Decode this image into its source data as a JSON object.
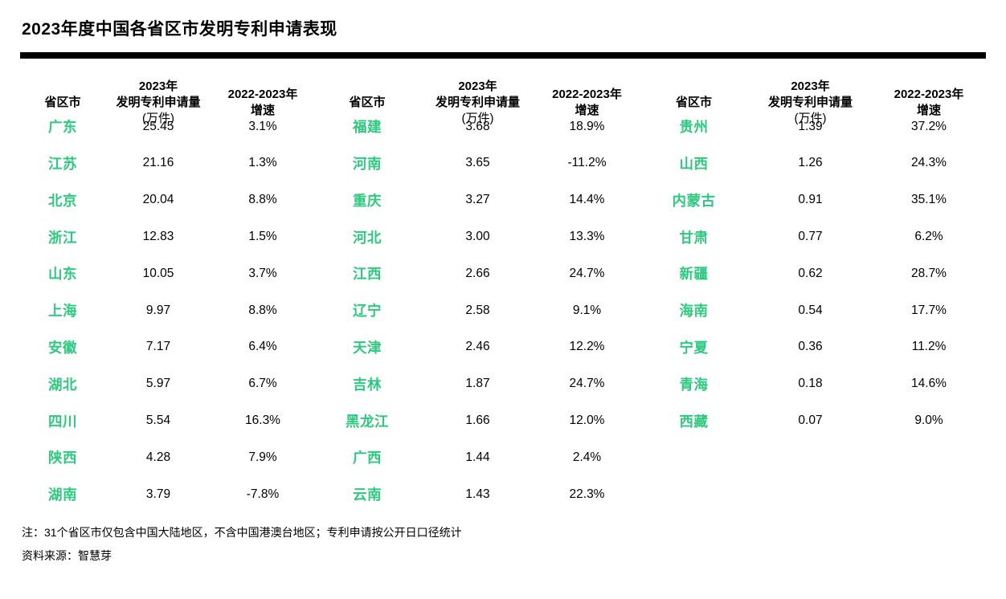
{
  "title": "2023年度中国各省区市发明专利申请表现",
  "colors": {
    "accent_green": "#2EC87F",
    "divider_black": "#000000"
  },
  "table": {
    "headers": {
      "province": "省区市",
      "amount_line1": "2023年",
      "amount_line2": "发明专利申请量",
      "amount_line3": "(万件)",
      "growth_line1": "2022-2023年",
      "growth_line2": "增速"
    },
    "groups": [
      {
        "rows": [
          [
            "广东",
            "25.45",
            "3.1%"
          ],
          [
            "江苏",
            "21.16",
            "1.3%"
          ],
          [
            "北京",
            "20.04",
            "8.8%"
          ],
          [
            "浙江",
            "12.83",
            "1.5%"
          ],
          [
            "山东",
            "10.05",
            "3.7%"
          ],
          [
            "上海",
            "9.97",
            "8.8%"
          ],
          [
            "安徽",
            "7.17",
            "6.4%"
          ],
          [
            "湖北",
            "5.97",
            "6.7%"
          ],
          [
            "四川",
            "5.54",
            "16.3%"
          ],
          [
            "陕西",
            "4.28",
            "7.9%"
          ],
          [
            "湖南",
            "3.79",
            "-7.8%"
          ]
        ]
      },
      {
        "rows": [
          [
            "福建",
            "3.68",
            "18.9%"
          ],
          [
            "河南",
            "3.65",
            "-11.2%"
          ],
          [
            "重庆",
            "3.27",
            "14.4%"
          ],
          [
            "河北",
            "3.00",
            "13.3%"
          ],
          [
            "江西",
            "2.66",
            "24.7%"
          ],
          [
            "辽宁",
            "2.58",
            "9.1%"
          ],
          [
            "天津",
            "2.46",
            "12.2%"
          ],
          [
            "吉林",
            "1.87",
            "24.7%"
          ],
          [
            "黑龙江",
            "1.66",
            "12.0%"
          ],
          [
            "广西",
            "1.44",
            "2.4%"
          ],
          [
            "云南",
            "1.43",
            "22.3%"
          ]
        ]
      },
      {
        "rows": [
          [
            "贵州",
            "1.39",
            "37.2%"
          ],
          [
            "山西",
            "1.26",
            "24.3%"
          ],
          [
            "内蒙古",
            "0.91",
            "35.1%"
          ],
          [
            "甘肃",
            "0.77",
            "6.2%"
          ],
          [
            "新疆",
            "0.62",
            "28.7%"
          ],
          [
            "海南",
            "0.54",
            "17.7%"
          ],
          [
            "宁夏",
            "0.36",
            "11.2%"
          ],
          [
            "青海",
            "0.18",
            "14.6%"
          ],
          [
            "西藏",
            "0.07",
            "9.0%"
          ]
        ]
      }
    ]
  },
  "notes": {
    "footnote": "注：31个省区市仅包含中国大陆地区，不含中国港澳台地区；专利申请按公开日口径统计",
    "source": "资料来源：智慧芽"
  }
}
